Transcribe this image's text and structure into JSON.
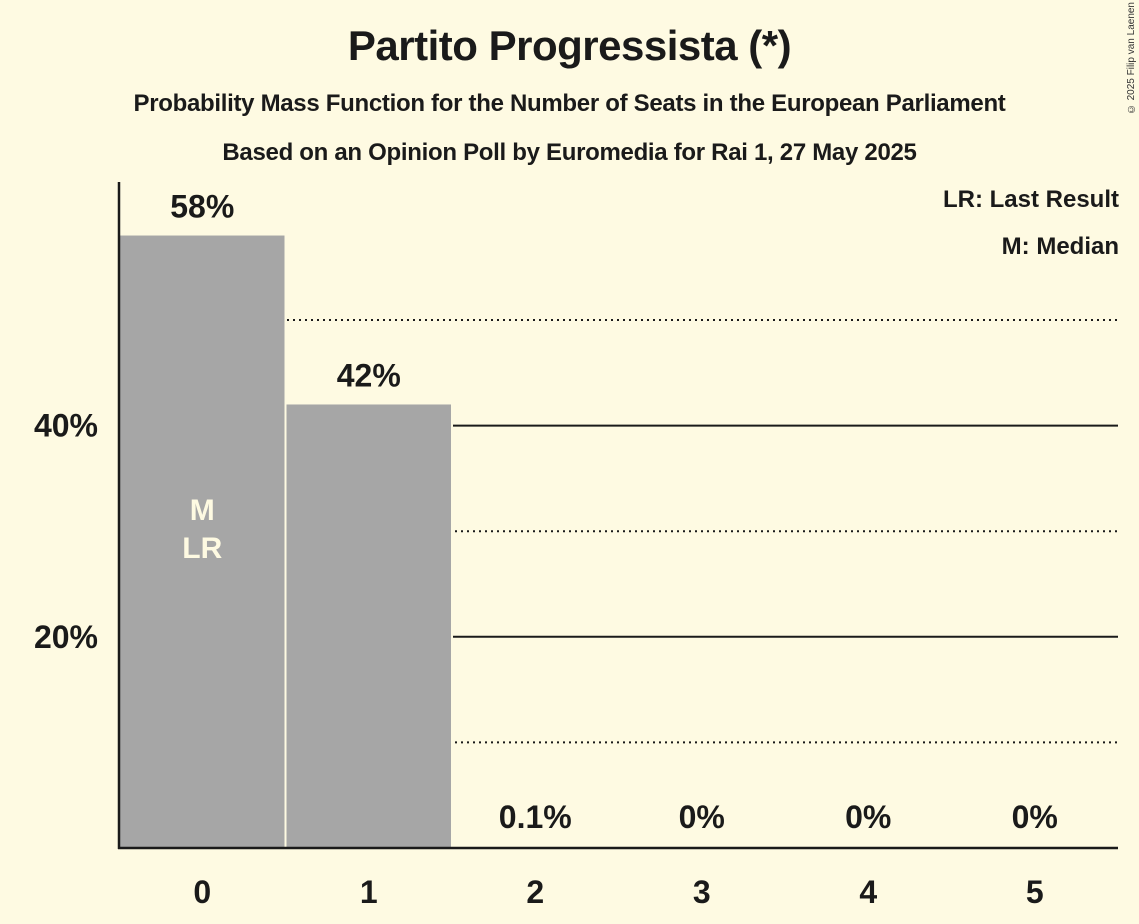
{
  "header": {
    "title": "Partito Progressista (*)",
    "subtitle": "Probability Mass Function for the Number of Seats in the European Parliament",
    "source": "Based on an Opinion Poll by Euromedia for Rai 1, 27 May 2025",
    "copyright": "© 2025 Filip van Laenen"
  },
  "legend": {
    "lr": "LR: Last Result",
    "m": "M: Median"
  },
  "colors": {
    "background": "#fefae2",
    "bar": "#a6a6a6",
    "bar_label_inside": "#fefae2",
    "text": "#1a1a1a"
  },
  "chart_data": {
    "type": "bar",
    "title": "Partito Progressista (*)",
    "subtitle": "Probability Mass Function for the Number of Seats in the European Parliament",
    "caption": "Based on an Opinion Poll by Euromedia for Rai 1, 27 May 2025",
    "xlabel": "",
    "ylabel": "",
    "categories": [
      "0",
      "1",
      "2",
      "3",
      "4",
      "5"
    ],
    "values": [
      58,
      42,
      0.1,
      0,
      0,
      0
    ],
    "value_labels": [
      "58%",
      "42%",
      "0.1%",
      "0%",
      "0%",
      "0%"
    ],
    "ylim": [
      0,
      60
    ],
    "yticks": [
      20,
      40
    ],
    "ytick_labels": [
      "20%",
      "40%"
    ],
    "minor_gridlines": [
      10,
      30,
      50
    ],
    "grid": true,
    "annotations": [
      {
        "category": "0",
        "text": "M",
        "meaning": "Median"
      },
      {
        "category": "0",
        "text": "LR",
        "meaning": "Last Result"
      }
    ],
    "legend_position": "top-right",
    "legend": [
      "LR: Last Result",
      "M: Median"
    ]
  }
}
